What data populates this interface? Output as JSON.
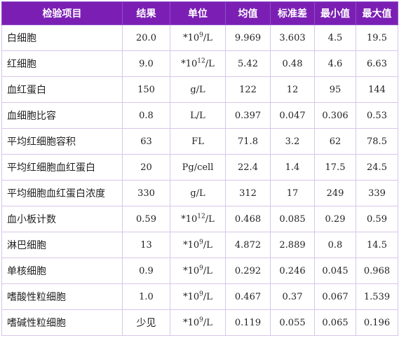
{
  "table": {
    "headers": [
      "检验项目",
      "结果",
      "单位",
      "均值",
      "标准差",
      "最小值",
      "最大值"
    ],
    "rows": [
      {
        "item": "白细胞",
        "result": "20.0",
        "unit_prefix": "*10",
        "unit_exp": "9",
        "unit_suffix": "/L",
        "mean": "9.969",
        "sd": "3.603",
        "min": "4.5",
        "max": "19.5"
      },
      {
        "item": "红细胞",
        "result": "9.0",
        "unit_prefix": "*10",
        "unit_exp": "12",
        "unit_suffix": "/L",
        "mean": "5.42",
        "sd": "0.48",
        "min": "4.6",
        "max": "6.63"
      },
      {
        "item": "血红蛋白",
        "result": "150",
        "unit_prefix": "g/L",
        "unit_exp": "",
        "unit_suffix": "",
        "mean": "122",
        "sd": "12",
        "min": "95",
        "max": "144"
      },
      {
        "item": "血细胞比容",
        "result": "0.8",
        "unit_prefix": "L/L",
        "unit_exp": "",
        "unit_suffix": "",
        "mean": "0.397",
        "sd": "0.047",
        "min": "0.306",
        "max": "0.53"
      },
      {
        "item": "平均红细胞容积",
        "result": "63",
        "unit_prefix": "FL",
        "unit_exp": "",
        "unit_suffix": "",
        "mean": "71.8",
        "sd": "3.2",
        "min": "62",
        "max": "78.5"
      },
      {
        "item": "平均红细胞血红蛋白",
        "result": "20",
        "unit_prefix": "Pg/cell",
        "unit_exp": "",
        "unit_suffix": "",
        "mean": "22.4",
        "sd": "1.4",
        "min": "17.5",
        "max": "24.5"
      },
      {
        "item": "平均细胞血红蛋白浓度",
        "result": "330",
        "unit_prefix": "g/L",
        "unit_exp": "",
        "unit_suffix": "",
        "mean": "312",
        "sd": "17",
        "min": "249",
        "max": "339"
      },
      {
        "item": "血小板计数",
        "result": "0.59",
        "unit_prefix": "*10",
        "unit_exp": "12",
        "unit_suffix": "/L",
        "mean": "0.468",
        "sd": "0.085",
        "min": "0.29",
        "max": "0.59"
      },
      {
        "item": "淋巴细胞",
        "result": "13",
        "unit_prefix": "*10",
        "unit_exp": "9",
        "unit_suffix": "/L",
        "mean": "4.872",
        "sd": "2.889",
        "min": "0.8",
        "max": "14.5"
      },
      {
        "item": "单核细胞",
        "result": "0.9",
        "unit_prefix": "*10",
        "unit_exp": "9",
        "unit_suffix": "/L",
        "mean": "0.292",
        "sd": "0.246",
        "min": "0.045",
        "max": "0.968"
      },
      {
        "item": "嗜酸性粒细胞",
        "result": "1.0",
        "unit_prefix": "*10",
        "unit_exp": "9",
        "unit_suffix": "/L",
        "mean": "0.467",
        "sd": "0.37",
        "min": "0.067",
        "max": "1.539"
      },
      {
        "item": "嗜碱性粒细胞",
        "result": "少见",
        "unit_prefix": "*10",
        "unit_exp": "9",
        "unit_suffix": "/L",
        "mean": "0.119",
        "sd": "0.055",
        "min": "0.065",
        "max": "0.196"
      }
    ]
  }
}
